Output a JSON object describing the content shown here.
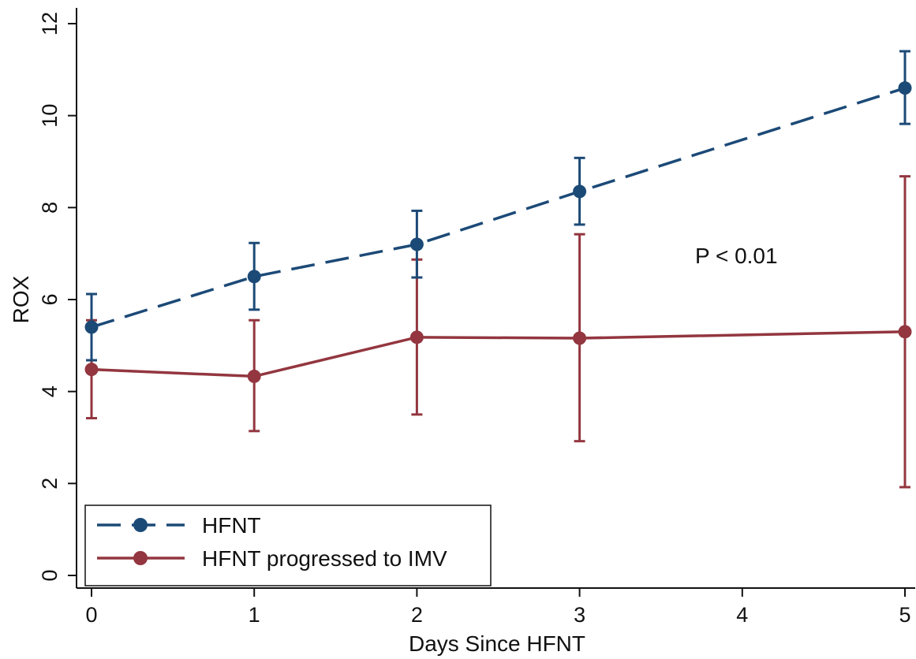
{
  "chart_data": {
    "type": "line",
    "xlabel": "Days Since HFNT",
    "ylabel": "ROX",
    "xlim": [
      0,
      5
    ],
    "ylim": [
      0,
      12
    ],
    "x_ticks": [
      0,
      1,
      2,
      3,
      4,
      5
    ],
    "y_ticks": [
      0,
      2,
      4,
      6,
      8,
      10,
      12
    ],
    "grid": false,
    "legend_position": "bottom-left",
    "annotation": "P < 0.01",
    "series": [
      {
        "name": "HFNT",
        "color": "#1c4a77",
        "line_style": "dashed",
        "marker": "circle",
        "x": [
          0,
          1,
          2,
          3,
          5
        ],
        "y": [
          5.4,
          6.5,
          7.2,
          8.35,
          10.6
        ],
        "error_low": [
          4.68,
          5.78,
          6.48,
          7.63,
          9.82
        ],
        "error_high": [
          6.12,
          7.23,
          7.93,
          9.08,
          11.4
        ]
      },
      {
        "name": "HFNT progressed to IMV",
        "color": "#93363f",
        "line_style": "solid",
        "marker": "circle",
        "x": [
          0,
          1,
          2,
          3,
          5
        ],
        "y": [
          4.48,
          4.33,
          5.18,
          5.16,
          5.3
        ],
        "error_low": [
          3.42,
          3.14,
          3.5,
          2.92,
          1.92
        ],
        "error_high": [
          5.55,
          5.55,
          6.87,
          7.42,
          8.68
        ]
      }
    ]
  }
}
